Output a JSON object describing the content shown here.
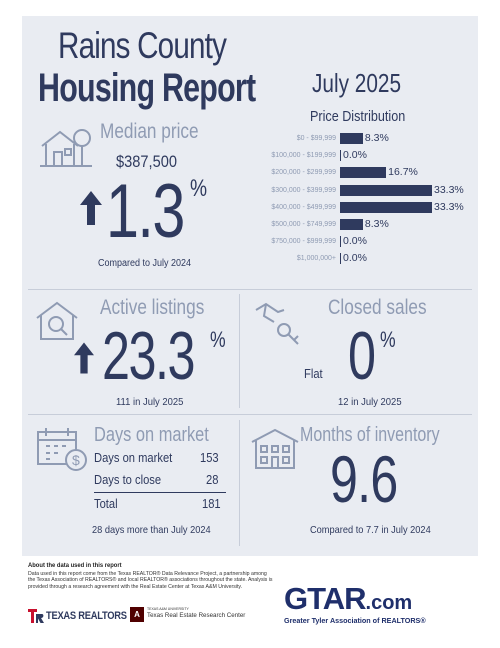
{
  "header": {
    "county": "Rains County",
    "report": "Housing Report",
    "date": "July 2025"
  },
  "median_price": {
    "title": "Median price",
    "value": "$387,500",
    "change": "1.3",
    "unit": "%",
    "direction": "up",
    "note": "Compared to July 2024",
    "icon": "house-tree-icon"
  },
  "price_distribution": {
    "title": "Price Distribution",
    "chart_data": {
      "type": "bar",
      "categories": [
        "$0 - $99,999",
        "$100,000 - $199,999",
        "$200,000 - $299,999",
        "$300,000 - $399,999",
        "$400,000 - $499,999",
        "$500,000 - $749,999",
        "$750,000 - $999,999",
        "$1,000,000+"
      ],
      "values": [
        8.3,
        0.0,
        16.7,
        33.3,
        33.3,
        8.3,
        0.0,
        0.0
      ],
      "labels": [
        "8.3%",
        "0.0%",
        "16.7%",
        "33.3%",
        "33.3%",
        "8.3%",
        "0.0%",
        "0.0%"
      ],
      "xlim": [
        0,
        33.3
      ]
    }
  },
  "active_listings": {
    "title": "Active listings",
    "change": "23.3",
    "unit": "%",
    "direction": "up",
    "note": "111 in July 2025",
    "icon": "house-magnifier-icon"
  },
  "closed_sales": {
    "title": "Closed sales",
    "flat_label": "Flat",
    "change": "0",
    "unit": "%",
    "note": "12 in July 2025",
    "icon": "hand-key-icon"
  },
  "days_on_market": {
    "title": "Days on market",
    "rows": [
      {
        "label": "Days on market",
        "value": "153"
      },
      {
        "label": "Days to close",
        "value": "28"
      }
    ],
    "total_label": "Total",
    "total_value": "181",
    "note": "28 days more than July 2024",
    "icon": "calendar-dollar-icon"
  },
  "months_inventory": {
    "title": "Months of inventory",
    "value": "9.6",
    "note": "Compared to 7.7 in July 2024",
    "icon": "building-icon"
  },
  "footer": {
    "about_title": "About the data used in this report",
    "about_text": "Data used in this report come from the Texas REALTOR® Data Relevance Project, a partnership among the Texas Association of REALTORS® and local REALTOR® associations throughout the state. Analysis is provided through a research agreement with the Real Estate Center at Texas A&M University.",
    "texas_realtors": "TEXAS REALTORS",
    "tamu_small": "TEXAS A&M UNIVERSITY",
    "tamu_center": "Texas Real Estate Research Center",
    "gtar_logo": "GTAR",
    "gtar_suffix": ".com",
    "gtar_tagline": "Greater Tyler Association of REALTORS®"
  },
  "colors": {
    "dark": "#2f3a5e",
    "light": "#8f9bb3",
    "card": "#e9ecf2",
    "accent_red": "#c8102e",
    "maroon": "#500000"
  }
}
